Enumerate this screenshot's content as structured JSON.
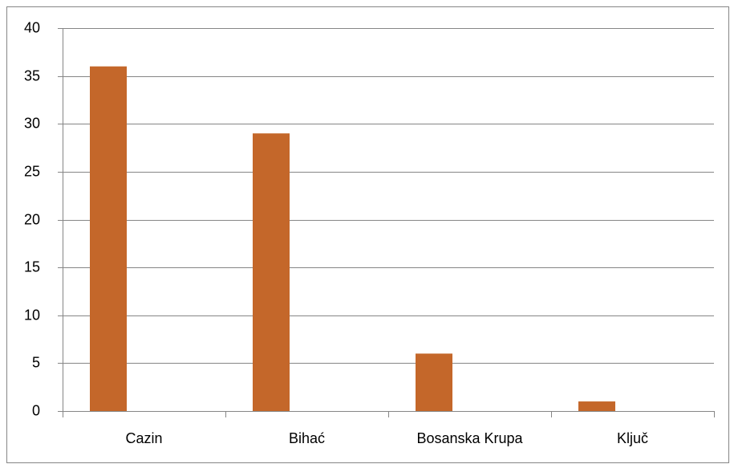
{
  "chart_data": {
    "type": "bar",
    "categories": [
      "Cazin",
      "Bihać",
      "Bosanska Krupa",
      "Ključ"
    ],
    "values": [
      36,
      29,
      6,
      1
    ],
    "color": "#c4672a",
    "ylim": [
      0,
      40
    ],
    "yticks": [
      0,
      5,
      10,
      15,
      20,
      25,
      30,
      35,
      40
    ],
    "grid": true
  }
}
